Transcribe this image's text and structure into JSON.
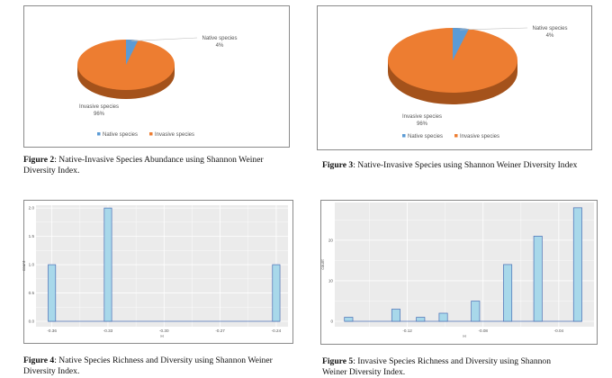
{
  "figures": [
    {
      "caption_label": "Figure 2",
      "caption_text": ": Native-Invasive Species Abundance using Shannon Weiner Diversity Index."
    },
    {
      "caption_label": "Figure 3",
      "caption_text": ": Native-Invasive Species using Shannon Weiner Diversity Index"
    },
    {
      "caption_label": "Figure 4",
      "caption_text": ": Native Species Richness and Diversity using Shannon Weiner Diversity Index."
    },
    {
      "caption_label": "Figure 5",
      "caption_text": ": Invasive Species Richness and Diversity using Shannon Weiner Diversity Index."
    }
  ],
  "chart_data": [
    {
      "type": "pie",
      "style": "3d",
      "slices": [
        {
          "label": "Native species",
          "value": 4,
          "display": "4%",
          "color": "#5b9bd5"
        },
        {
          "label": "Invasive species",
          "value": 96,
          "display": "96%",
          "color": "#ed7d31"
        }
      ],
      "legend": [
        "Native species",
        "Invasive species"
      ],
      "legend_position": "bottom"
    },
    {
      "type": "pie",
      "style": "3d",
      "slices": [
        {
          "label": "Native species",
          "value": 4,
          "display": "4%",
          "color": "#5b9bd5"
        },
        {
          "label": "Invasive species",
          "value": 96,
          "display": "96%",
          "color": "#ed7d31"
        }
      ],
      "legend": [
        "Native species",
        "Invasive species"
      ],
      "legend_position": "bottom"
    },
    {
      "type": "bar",
      "subtype": "histogram",
      "xlabel": "H",
      "ylabel": "count",
      "x": [
        -0.36,
        -0.33,
        -0.24
      ],
      "values": [
        1,
        2,
        1
      ],
      "xticks": [
        "-0.36",
        "-0.33",
        "-0.30",
        "-0.27",
        "-0.24"
      ],
      "yticks": [
        "0.0",
        "0.5",
        "1.0",
        "1.5",
        "2.0"
      ],
      "xlim": [
        -0.3685,
        -0.2337
      ],
      "ylim": [
        -0.095,
        2.05
      ],
      "grid": true,
      "fill": "#a8d8ea",
      "stroke": "#4a6fb5",
      "panel": "#ebebeb"
    },
    {
      "type": "bar",
      "subtype": "histogram",
      "xlabel": "H",
      "ylabel": "count",
      "x": [
        -0.151,
        -0.126,
        -0.113,
        -0.101,
        -0.084,
        -0.067,
        -0.051,
        -0.03
      ],
      "values": [
        1,
        3,
        1,
        2,
        5,
        14,
        21,
        28
      ],
      "xticks": [
        "-0.12",
        "-0.08",
        "-0.04"
      ],
      "yticks": [
        "0",
        "10",
        "20"
      ],
      "xlim": [
        -0.1583,
        -0.0214
      ],
      "ylim": [
        -1.33,
        29.3
      ],
      "grid": true,
      "fill": "#a8d8ea",
      "stroke": "#4a6fb5",
      "panel": "#ebebeb"
    }
  ]
}
